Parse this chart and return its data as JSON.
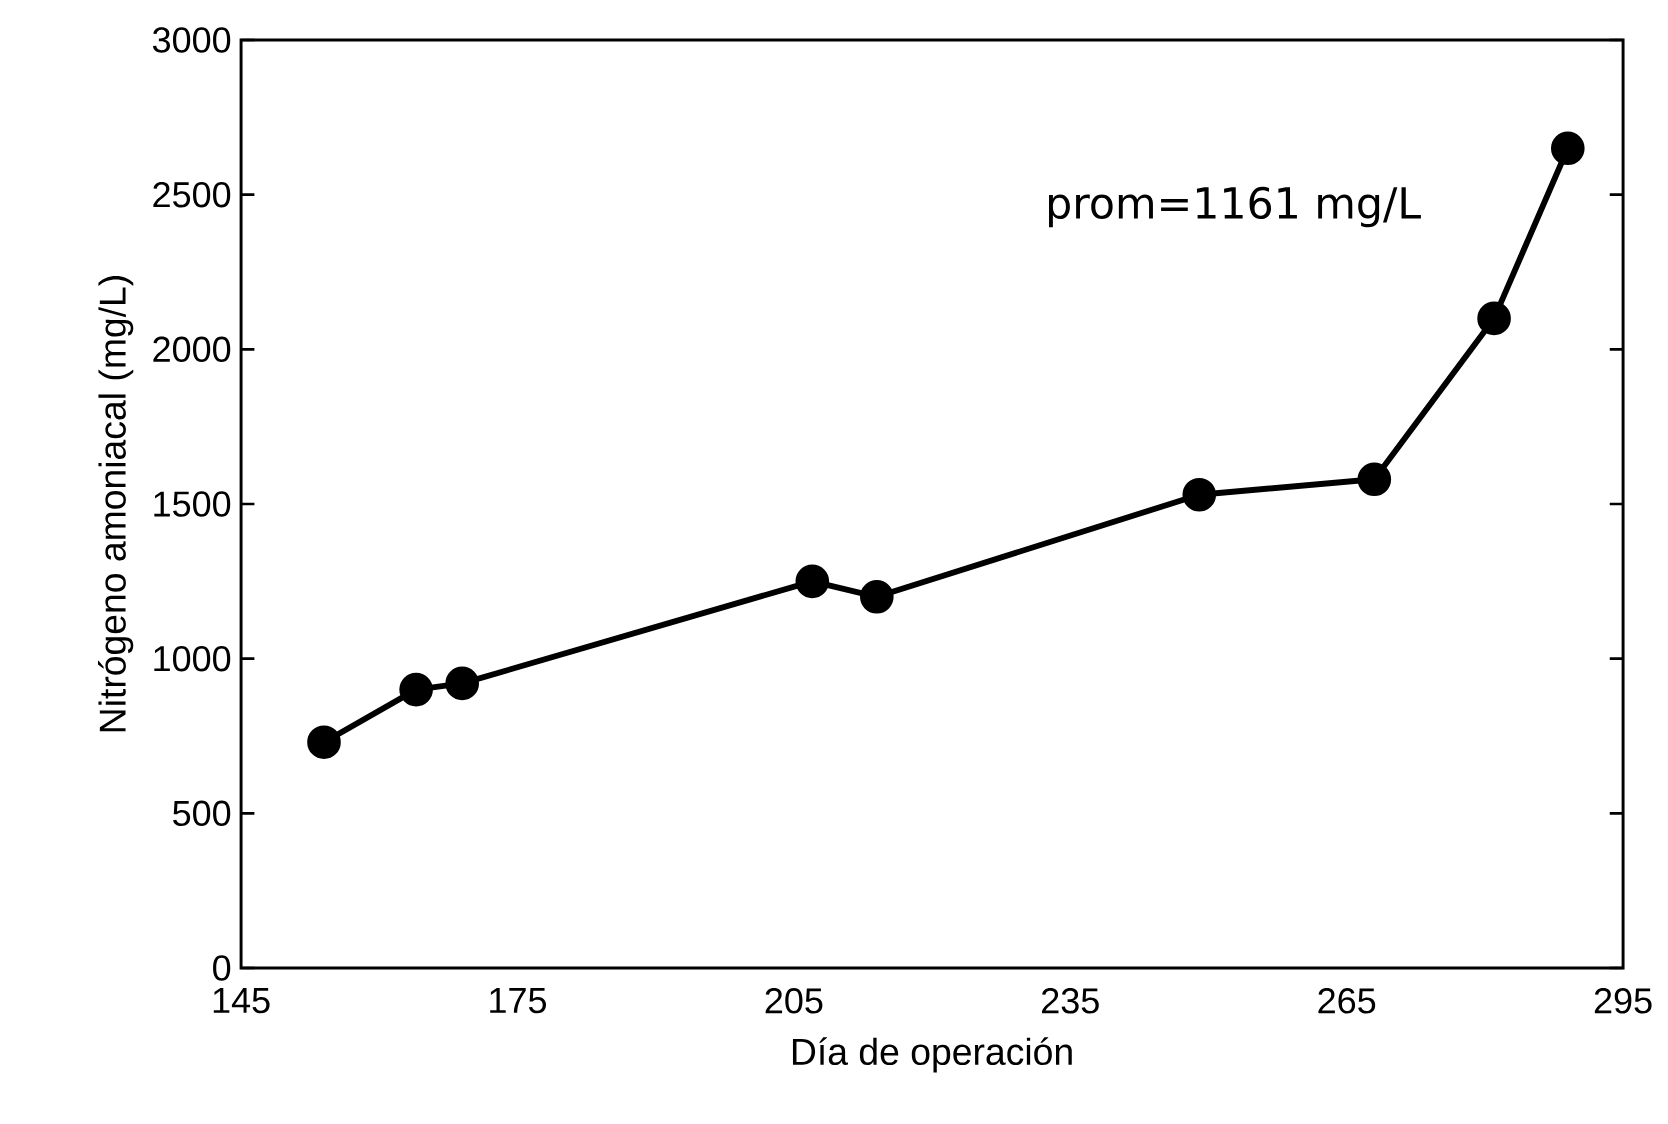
{
  "chart_data": {
    "type": "line",
    "xlabel": "Día de operación",
    "ylabel": "Nitrógeno amoniacal (mg/L)",
    "annotations": [
      "prom=1161 mg/L"
    ],
    "x": [
      154,
      164,
      169,
      207,
      214,
      249,
      268,
      281,
      289
    ],
    "series": [
      {
        "color": "#000000",
        "values": [
          730,
          900,
          920,
          1250,
          1200,
          1530,
          1580,
          2100,
          2650
        ]
      }
    ],
    "xlim": [
      145,
      295
    ],
    "xticks": [
      145,
      175,
      205,
      235,
      265,
      295
    ],
    "ylim": [
      0,
      3000
    ],
    "yticks": [
      0,
      500,
      1000,
      1500,
      2000,
      2500,
      3000
    ],
    "marker": "circle",
    "line_style": "solid",
    "grid": false,
    "legend": false
  }
}
